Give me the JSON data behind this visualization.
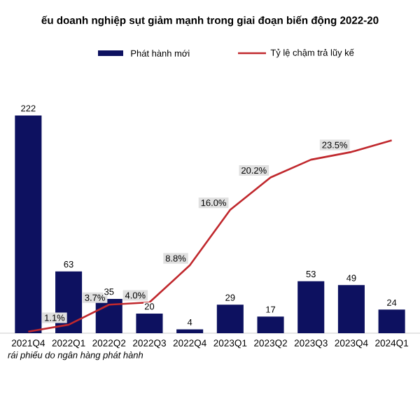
{
  "chart_data": {
    "type": "bar",
    "title": "ếu doanh nghiệp sụt giảm mạnh trong giai đoạn biến động 2022-20",
    "categories": [
      "2021Q4",
      "2022Q1",
      "2022Q2",
      "2022Q3",
      "2022Q4",
      "2023Q1",
      "2023Q2",
      "2023Q3",
      "2023Q4",
      "2024Q1"
    ],
    "series": [
      {
        "name": "Phát hành mới",
        "type": "bar",
        "color": "#0d1160",
        "values": [
          222,
          63,
          35,
          20,
          4,
          29,
          17,
          53,
          49,
          24
        ],
        "value_labels": [
          "222",
          "63",
          "35",
          "20",
          "4",
          "29",
          "17",
          "53",
          "49",
          "24"
        ]
      },
      {
        "name": "Tỷ lệ chậm trả lũy kế",
        "type": "line",
        "axis": "y2",
        "color": "#c0282d",
        "values": [
          0.2,
          1.1,
          3.7,
          4.0,
          8.8,
          16.0,
          20.2,
          22.5,
          23.5,
          25.0
        ],
        "value_labels": [
          null,
          "1.1%",
          "3.7%",
          "4.0%",
          "8.8%",
          "16.0%",
          "20.2%",
          null,
          "23.5%",
          null
        ]
      }
    ],
    "legend": "top",
    "annotations": [
      "rái phiếu do ngân hàng phát hành"
    ]
  }
}
